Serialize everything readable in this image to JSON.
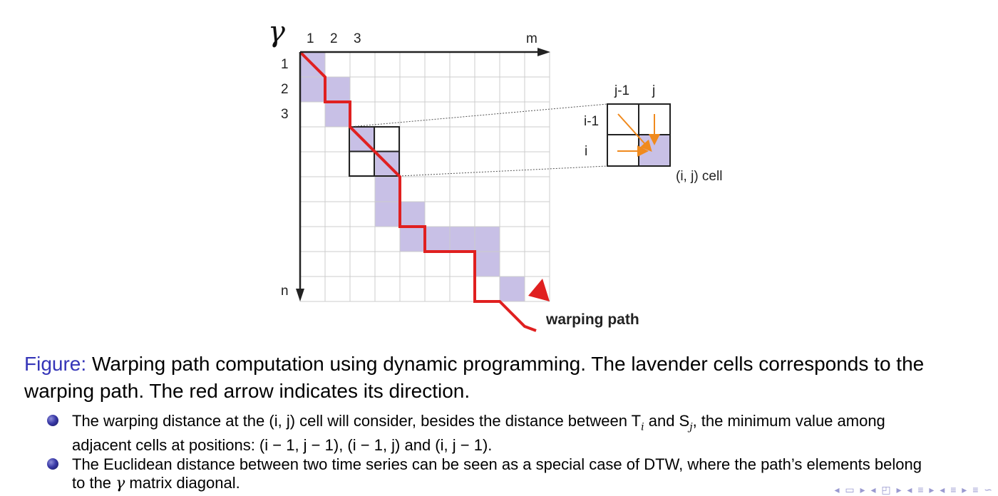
{
  "diagram": {
    "gamma_symbol": "γ",
    "col_labels": [
      "1",
      "2",
      "3"
    ],
    "col_last_label": "m",
    "row_labels": [
      "1",
      "2",
      "3"
    ],
    "row_last_label": "n",
    "warping_path_label": "warping path",
    "inset": {
      "col_labels": [
        "j-1",
        "j"
      ],
      "row_labels": [
        "i-1",
        "i"
      ],
      "cell_label": "(i, j) cell"
    },
    "grid_size": 10,
    "path_cells": [
      [
        0,
        0
      ],
      [
        1,
        0
      ],
      [
        1,
        1
      ],
      [
        2,
        1
      ],
      [
        3,
        2
      ],
      [
        4,
        3
      ],
      [
        5,
        3
      ],
      [
        6,
        3
      ],
      [
        6,
        4
      ],
      [
        7,
        4
      ],
      [
        7,
        5
      ],
      [
        7,
        6
      ],
      [
        7,
        7
      ],
      [
        8,
        7
      ],
      [
        9,
        8
      ]
    ],
    "colors": {
      "lavender": "#c8c0e6",
      "path_red": "#e02020",
      "inset_arrow": "#f08a1e",
      "grid": "#cccccc"
    }
  },
  "caption": {
    "prefix": "Figure:",
    "text": "Warping path computation using dynamic programming. The lavender cells corresponds to the warping path. The red arrow indicates its direction."
  },
  "bullets": [
    {
      "line1": "The warping distance at the (i, j) cell will consider, besides the distance between T",
      "line1_sub": "i",
      "line1_mid": " and S",
      "line1_sub2": "j",
      "line1_end": ", the minimum value among",
      "line2": "adjacent cells at positions: (i − 1, j − 1), (i − 1, j) and (i, j − 1)."
    },
    {
      "line1": "The Euclidean distance between two time series can be seen as a special case of DTW, where the path’s elements belong",
      "line2_pre": "to the ",
      "line2_sym": "γ",
      "line2_post": " matrix diagonal."
    }
  ]
}
